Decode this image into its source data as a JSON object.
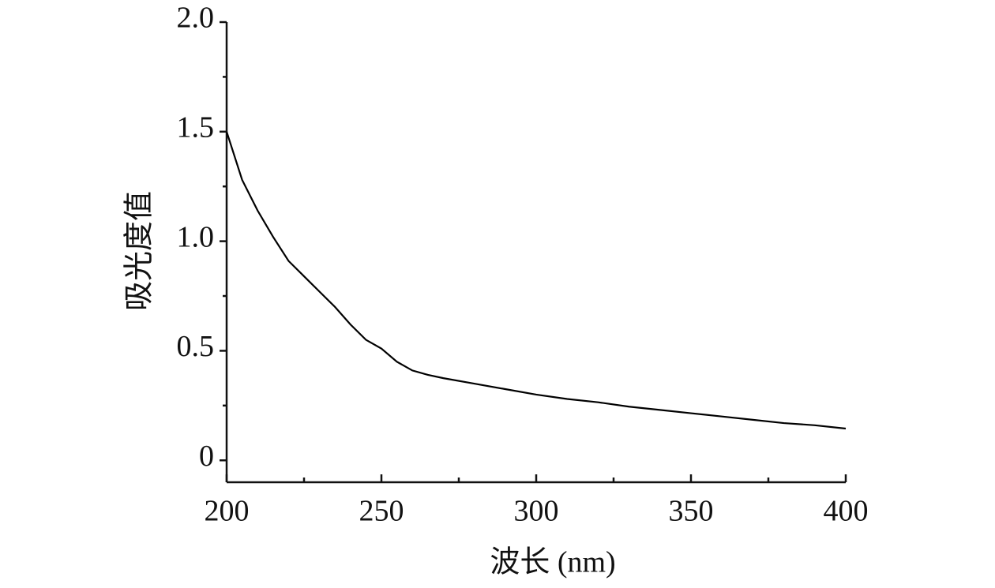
{
  "chart_data": {
    "type": "line",
    "x_label": "波长 (nm)",
    "y_label": "吸光度值",
    "x": [
      200,
      205,
      210,
      215,
      220,
      225,
      230,
      235,
      240,
      245,
      250,
      255,
      260,
      265,
      270,
      280,
      290,
      300,
      310,
      320,
      330,
      340,
      350,
      360,
      370,
      380,
      390,
      400
    ],
    "series": [
      {
        "color": "#000000",
        "values": [
          1.5,
          1.28,
          1.14,
          1.02,
          0.91,
          0.84,
          0.77,
          0.7,
          0.62,
          0.55,
          0.51,
          0.45,
          0.41,
          0.39,
          0.375,
          0.35,
          0.325,
          0.3,
          0.28,
          0.265,
          0.245,
          0.23,
          0.215,
          0.2,
          0.185,
          0.17,
          0.16,
          0.145
        ]
      }
    ],
    "xlim": [
      200,
      400
    ],
    "xticks": [
      200,
      250,
      300,
      350,
      400
    ],
    "xminorticks": [
      225,
      275,
      325,
      375
    ],
    "ylim": [
      -0.1,
      2.0
    ],
    "yticks": [
      0,
      0.5,
      {
        "value": 1,
        "label": "1.0"
      },
      1.5,
      {
        "value": 2,
        "label": "2.0"
      }
    ],
    "yminorticks": [
      0.25,
      0.75,
      1.25,
      1.75
    ]
  }
}
